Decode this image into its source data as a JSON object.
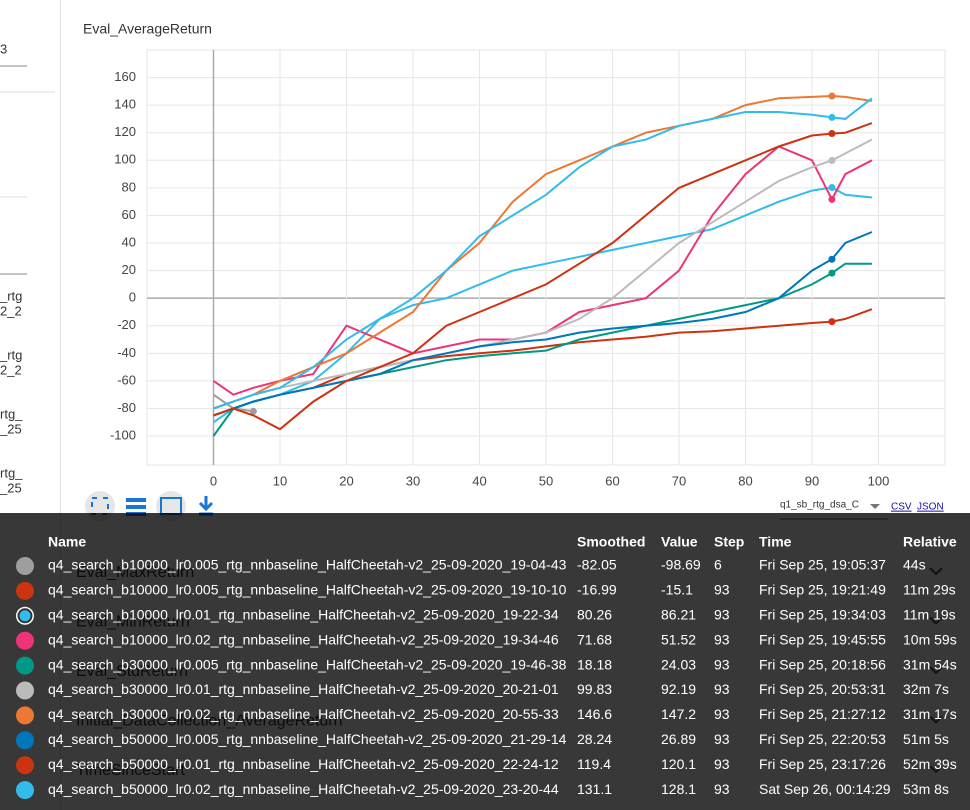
{
  "sidebar": [
    "3",
    "_rtg",
    "2_2",
    "_rtg",
    "2_2",
    "rtg_",
    "_25",
    "rtg_",
    "_25"
  ],
  "chart_data": {
    "type": "line",
    "title": "Eval_AverageReturn",
    "x": [
      0,
      3,
      6,
      10,
      15,
      20,
      25,
      30,
      35,
      40,
      45,
      50,
      55,
      60,
      65,
      70,
      75,
      80,
      85,
      90,
      93,
      95,
      99
    ],
    "series": [
      {
        "name": "q4_search_b10000_lr0.005_rtg_nnbaseline_HalfCheetah-v2_25-09-2020_19-04-43",
        "color": "#9e9e9e",
        "values": [
          -70,
          -80,
          -82.05,
          null,
          null,
          null,
          null,
          null,
          null,
          null,
          null,
          null,
          null,
          null,
          null,
          null,
          null,
          null,
          null,
          null,
          null,
          null,
          null
        ]
      },
      {
        "name": "q4_search_b10000_lr0.005_rtg_nnbaseline_HalfCheetah-v2_25-09-2020_19-10-10",
        "color": "#cc3311",
        "values": [
          -85,
          -80,
          -75,
          -70,
          -65,
          -55,
          -50,
          -45,
          -42,
          -40,
          -38,
          -35,
          -32,
          -30,
          -28,
          -25,
          -24,
          -22,
          -20,
          -18,
          -16.99,
          -15,
          -8
        ]
      },
      {
        "name": "q4_search_b10000_lr0.01_rtg_nnbaseline_HalfCheetah-v2_25-09-2020_19-22-34",
        "color": "#33bbee",
        "values": [
          -90,
          -80,
          -75,
          -70,
          -60,
          -40,
          -15,
          -5,
          0,
          10,
          20,
          25,
          30,
          35,
          40,
          45,
          50,
          60,
          70,
          78,
          80.26,
          75,
          73
        ]
      },
      {
        "name": "q4_search_b10000_lr0.02_rtg_nnbaseline_HalfCheetah-v2_25-09-2020_19-34-46",
        "color": "#ee3377",
        "values": [
          -60,
          -70,
          -65,
          -60,
          -55,
          -20,
          -30,
          -40,
          -35,
          -30,
          -30,
          -25,
          -10,
          -5,
          0,
          20,
          60,
          90,
          110,
          100,
          71.68,
          90,
          100
        ]
      },
      {
        "name": "q4_search_b30000_lr0.005_rtg_nnbaseline_HalfCheetah-v2_25-09-2020_19-46-38",
        "color": "#009988",
        "values": [
          -100,
          -80,
          -75,
          -70,
          -65,
          -60,
          -55,
          -50,
          -45,
          -42,
          -40,
          -38,
          -30,
          -25,
          -20,
          -15,
          -10,
          -5,
          0,
          10,
          18.18,
          25,
          25
        ]
      },
      {
        "name": "q4_search_b30000_lr0.01_rtg_nnbaseline_HalfCheetah-v2_25-09-2020_20-21-01",
        "color": "#bbbbbb",
        "values": [
          -80,
          -75,
          -70,
          -65,
          -60,
          -55,
          -50,
          -45,
          -40,
          -35,
          -30,
          -25,
          -15,
          0,
          20,
          40,
          55,
          70,
          85,
          95,
          99.83,
          105,
          115
        ]
      },
      {
        "name": "q4_search_b30000_lr0.02_rtg_nnbaseline_HalfCheetah-v2_25-09-2020_20-55-33",
        "color": "#ee7733",
        "values": [
          -80,
          -75,
          -70,
          -60,
          -50,
          -40,
          -25,
          -10,
          20,
          40,
          70,
          90,
          100,
          110,
          120,
          125,
          130,
          140,
          145,
          146,
          146.6,
          146,
          143
        ]
      },
      {
        "name": "q4_search_b50000_lr0.005_rtg_nnbaseline_HalfCheetah-v2_25-09-2020_21-29-14",
        "color": "#0077bb",
        "values": [
          -85,
          -80,
          -75,
          -70,
          -65,
          -60,
          -55,
          -45,
          -40,
          -35,
          -32,
          -30,
          -25,
          -22,
          -20,
          -18,
          -15,
          -10,
          0,
          20,
          28.24,
          40,
          48
        ]
      },
      {
        "name": "q4_search_b50000_lr0.01_rtg_nnbaseline_HalfCheetah-v2_25-09-2020_22-24-12",
        "color": "#cc3311",
        "values": [
          -85,
          -80,
          -85,
          -95,
          -75,
          -60,
          -50,
          -40,
          -20,
          -10,
          0,
          10,
          25,
          40,
          60,
          80,
          90,
          100,
          110,
          118,
          119.4,
          120,
          127
        ]
      },
      {
        "name": "q4_search_b50000_lr0.02_rtg_nnbaseline_HalfCheetah-v2_25-09-2020_23-20-44",
        "color": "#33bbee",
        "values": [
          -80,
          -75,
          -70,
          -65,
          -50,
          -30,
          -15,
          0,
          20,
          45,
          60,
          75,
          95,
          110,
          115,
          125,
          130,
          135,
          135,
          133,
          131.1,
          130,
          145
        ]
      }
    ],
    "xlim": [
      -10,
      110
    ],
    "xticks": [
      0,
      10,
      20,
      30,
      40,
      50,
      60,
      70,
      80,
      90,
      100
    ],
    "ylim": [
      -121,
      180
    ],
    "yticks": [
      -100,
      -80,
      -60,
      -40,
      -20,
      0,
      20,
      40,
      60,
      80,
      100,
      120,
      140,
      160
    ],
    "grid": true
  },
  "toolbar": {
    "run_select": "q1_sb_rtg_dsa_C",
    "csv": "CSV",
    "json": "JSON"
  },
  "hidden_sections": [
    "Eval_MaxReturn",
    "Eval_MinReturn",
    "Eval_StdReturn",
    "Initial_DataCollection_AverageReturn",
    "TimeSinceStart"
  ],
  "tooltip": {
    "columns": [
      "Name",
      "Smoothed",
      "Value",
      "Step",
      "Time",
      "Relative"
    ],
    "rows": [
      [
        "q4_search_b10000_lr0.005_rtg_nnbaseline_HalfCheetah-v2_25-09-2020_19-04-43",
        -82.05,
        -98.69,
        6,
        "Fri Sep 25, 19:05:37",
        "44s"
      ],
      [
        "q4_search_b10000_lr0.005_rtg_nnbaseline_HalfCheetah-v2_25-09-2020_19-10-10",
        -16.99,
        -15.1,
        93,
        "Fri Sep 25, 19:21:49",
        "11m 29s"
      ],
      [
        "q4_search_b10000_lr0.01_rtg_nnbaseline_HalfCheetah-v2_25-09-2020_19-22-34",
        80.26,
        86.21,
        93,
        "Fri Sep 25, 19:34:03",
        "11m 19s"
      ],
      [
        "q4_search_b10000_lr0.02_rtg_nnbaseline_HalfCheetah-v2_25-09-2020_19-34-46",
        71.68,
        51.52,
        93,
        "Fri Sep 25, 19:45:55",
        "10m 59s"
      ],
      [
        "q4_search_b30000_lr0.005_rtg_nnbaseline_HalfCheetah-v2_25-09-2020_19-46-38",
        18.18,
        24.03,
        93,
        "Fri Sep 25, 20:18:56",
        "31m 54s"
      ],
      [
        "q4_search_b30000_lr0.01_rtg_nnbaseline_HalfCheetah-v2_25-09-2020_20-21-01",
        99.83,
        92.19,
        93,
        "Fri Sep 25, 20:53:31",
        "32m 7s"
      ],
      [
        "q4_search_b30000_lr0.02_rtg_nnbaseline_HalfCheetah-v2_25-09-2020_20-55-33",
        146.6,
        147.2,
        93,
        "Fri Sep 25, 21:27:12",
        "31m 17s"
      ],
      [
        "q4_search_b50000_lr0.005_rtg_nnbaseline_HalfCheetah-v2_25-09-2020_21-29-14",
        28.24,
        26.89,
        93,
        "Fri Sep 25, 22:20:53",
        "51m 5s"
      ],
      [
        "q4_search_b50000_lr0.01_rtg_nnbaseline_HalfCheetah-v2_25-09-2020_22-24-12",
        119.4,
        120.1,
        93,
        "Fri Sep 25, 23:17:26",
        "52m 39s"
      ],
      [
        "q4_search_b50000_lr0.02_rtg_nnbaseline_HalfCheetah-v2_25-09-2020_23-20-44",
        131.1,
        128.1,
        93,
        "Sat Sep 26, 00:14:29",
        "53m 8s"
      ]
    ]
  }
}
